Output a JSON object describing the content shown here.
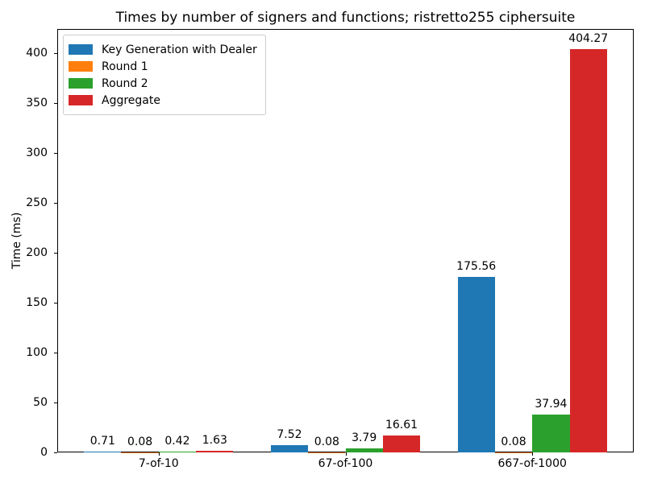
{
  "chart_data": {
    "type": "bar",
    "title": "Times by number of signers and functions; ristretto255 ciphersuite",
    "xlabel": "",
    "ylabel": "Time (ms)",
    "categories": [
      "7-of-10",
      "67-of-100",
      "667-of-1000"
    ],
    "series": [
      {
        "name": "Key Generation with Dealer",
        "color": "#1f77b4",
        "values": [
          0.71,
          7.52,
          175.56
        ]
      },
      {
        "name": "Round 1",
        "color": "#ff7f0e",
        "values": [
          0.08,
          0.08,
          0.08
        ]
      },
      {
        "name": "Round 2",
        "color": "#2ca02c",
        "values": [
          0.42,
          3.79,
          37.94
        ]
      },
      {
        "name": "Aggregate",
        "color": "#d62728",
        "values": [
          1.63,
          16.61,
          404.27
        ]
      }
    ],
    "bar_labels": [
      [
        "0.71",
        "7.52",
        "175.56"
      ],
      [
        "0.08",
        "0.08",
        "0.08"
      ],
      [
        "0.42",
        "3.79",
        "37.94"
      ],
      [
        "1.63",
        "16.61",
        "404.27"
      ]
    ],
    "yticks": [
      0,
      50,
      100,
      150,
      200,
      250,
      300,
      350,
      400
    ],
    "ylim": [
      0,
      424.5
    ],
    "grid": false,
    "legend_position": "upper left",
    "background_color": "#ffffff",
    "axis_color": "#000000"
  }
}
